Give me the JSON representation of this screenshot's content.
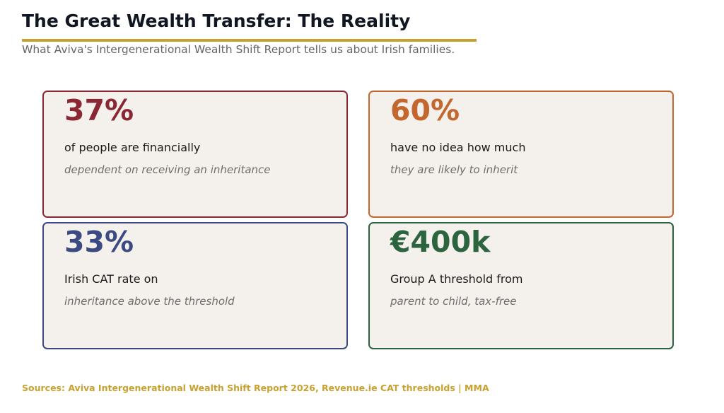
{
  "header": {
    "title": "The Great Wealth Transfer: The Reality",
    "subtitle": "What Aviva's Intergenerational Wealth Shift Report tells us about Irish families."
  },
  "cards": [
    {
      "stat": "37%",
      "line1": "of people are financially",
      "line2": "dependent on receiving an inheritance",
      "color": "#8b2734"
    },
    {
      "stat": "60%",
      "line1": "have no idea how much",
      "line2": "they are likely to inherit",
      "color": "#c4672f"
    },
    {
      "stat": "33%",
      "line1": "Irish CAT rate on",
      "line2": "inheritance above the threshold",
      "color": "#3b4a82"
    },
    {
      "stat": "€400k",
      "line1": "Group A threshold from",
      "line2": "parent to child, tax-free",
      "color": "#2c6440"
    }
  ],
  "footer": {
    "sources": "Sources: Aviva Intergenerational Wealth Shift Report 2026, Revenue.ie CAT thresholds  |  MMA"
  },
  "colors": {
    "accent": "#c9a130"
  }
}
